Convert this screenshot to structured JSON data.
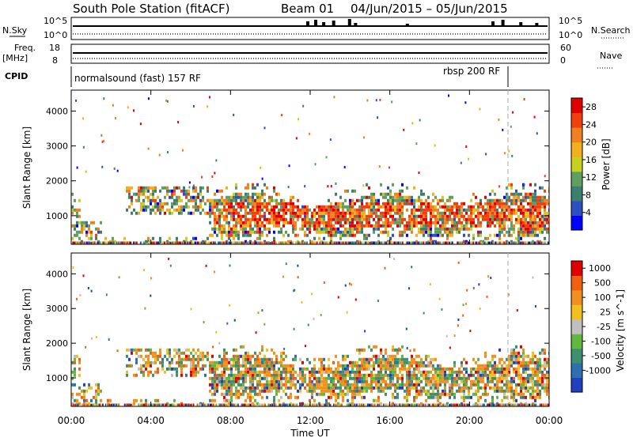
{
  "title": "South Pole Station (fitACF)",
  "beam_label": "Beam 01",
  "date_range": "04/Jun/2015 – 05/Jun/2015",
  "top_panels": {
    "nsky_label": "N.Sky",
    "nsearch_label": "N.Search",
    "nsky_ticks": [
      "10^5",
      "10^0"
    ],
    "nsearch_ticks": [
      "10^5",
      "10^0"
    ],
    "freq_label": "Freq.",
    "freq_unit": "[MHz]",
    "freq_ticks": [
      18,
      8
    ],
    "nave_label": "Nave",
    "nave_ticks": [
      60,
      0
    ],
    "cpid_label": "CPID"
  },
  "cpid_segments": [
    {
      "label": "normalsound (fast) 157 RF",
      "start_hour": 0
    },
    {
      "label": "rbsp 200 RF",
      "start_hour": 22
    }
  ],
  "chart_data": [
    {
      "type": "heatmap",
      "name": "Power",
      "ylabel": "Slant Range [km]",
      "ylim": [
        180,
        4600
      ],
      "yticks": [
        1000,
        2000,
        3000,
        4000
      ],
      "xlim": [
        0,
        24
      ],
      "colorbar_label": "Power [dB]",
      "colorbar_ticks": [
        4,
        8,
        12,
        16,
        20,
        24,
        28
      ],
      "colorbar_range": [
        0,
        30
      ],
      "colors": [
        "#0000ff",
        "#2e4fbf",
        "#3d7f6f",
        "#5fa060",
        "#c8d020",
        "#f0b020",
        "#f08020",
        "#f04010",
        "#e00000"
      ]
    },
    {
      "type": "heatmap",
      "name": "Velocity",
      "ylabel": "Slant Range [km]",
      "ylim": [
        180,
        4600
      ],
      "yticks": [
        1000,
        2000,
        3000,
        4000
      ],
      "xlim": [
        0,
        24
      ],
      "colorbar_label": "Velocity [m s^-1]",
      "colorbar_ticks": [
        "1000",
        "500",
        "100",
        "25",
        "-25",
        "-100",
        "-500",
        "-1000"
      ],
      "colors": [
        "#2040c0",
        "#2e6fb0",
        "#3d8f70",
        "#60b840",
        "#c0c0c0",
        "#f0c020",
        "#f09020",
        "#f06010",
        "#e00000"
      ]
    }
  ],
  "xaxis": {
    "label": "Time UT",
    "ticks": [
      "00:00",
      "04:00",
      "08:00",
      "12:00",
      "16:00",
      "20:00",
      "00:00"
    ],
    "hours": [
      0,
      4,
      8,
      12,
      16,
      20,
      24
    ]
  }
}
